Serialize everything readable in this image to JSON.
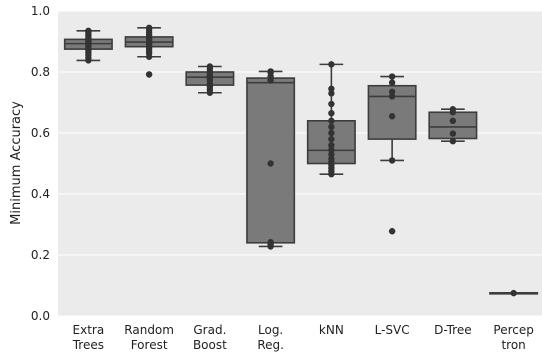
{
  "chart_data": {
    "type": "box",
    "title": "",
    "xlabel": "",
    "ylabel": "Minimum Accuracy",
    "ylim": [
      0.0,
      1.0
    ],
    "yticks": [
      "0.0",
      "0.2",
      "0.4",
      "0.6",
      "0.8",
      "1.0"
    ],
    "grid": true,
    "categories": [
      {
        "line1": "Extra",
        "line2": "Trees"
      },
      {
        "line1": "Random",
        "line2": "Forest"
      },
      {
        "line1": "Grad.",
        "line2": "Boost"
      },
      {
        "line1": "Log.",
        "line2": "Reg."
      },
      {
        "line1": "kNN",
        "line2": ""
      },
      {
        "line1": "L-SVC",
        "line2": ""
      },
      {
        "line1": "D-Tree",
        "line2": ""
      },
      {
        "line1": "Percep",
        "line2": "tron"
      }
    ],
    "boxes": [
      {
        "q1": 0.875,
        "median": 0.893,
        "q3": 0.907,
        "whislo": 0.838,
        "whishi": 0.935,
        "fliers": [],
        "points": [
          0.838,
          0.846,
          0.856,
          0.864,
          0.872,
          0.878,
          0.884,
          0.889,
          0.893,
          0.897,
          0.902,
          0.906,
          0.912,
          0.918,
          0.925,
          0.931,
          0.935
        ]
      },
      {
        "q1": 0.883,
        "median": 0.898,
        "q3": 0.915,
        "whislo": 0.85,
        "whishi": 0.945,
        "fliers": [
          0.792
        ],
        "points": [
          0.792,
          0.85,
          0.862,
          0.87,
          0.878,
          0.885,
          0.89,
          0.895,
          0.9,
          0.905,
          0.91,
          0.915,
          0.922,
          0.93,
          0.938,
          0.945
        ]
      },
      {
        "q1": 0.757,
        "median": 0.783,
        "q3": 0.8,
        "whislo": 0.732,
        "whishi": 0.818,
        "fliers": [],
        "points": [
          0.732,
          0.742,
          0.752,
          0.762,
          0.772,
          0.78,
          0.786,
          0.792,
          0.8,
          0.81,
          0.818
        ]
      },
      {
        "q1": 0.24,
        "median": 0.765,
        "q3": 0.78,
        "whislo": 0.228,
        "whishi": 0.802,
        "fliers": [],
        "points": [
          0.228,
          0.235,
          0.242,
          0.5,
          0.772,
          0.785,
          0.798,
          0.802
        ]
      },
      {
        "q1": 0.5,
        "median": 0.543,
        "q3": 0.64,
        "whislo": 0.465,
        "whishi": 0.825,
        "fliers": [],
        "points": [
          0.465,
          0.475,
          0.485,
          0.495,
          0.505,
          0.515,
          0.53,
          0.545,
          0.56,
          0.58,
          0.6,
          0.62,
          0.64,
          0.665,
          0.695,
          0.73,
          0.745,
          0.825
        ]
      },
      {
        "q1": 0.58,
        "median": 0.72,
        "q3": 0.755,
        "whislo": 0.51,
        "whishi": 0.785,
        "fliers": [
          0.278
        ],
        "points": [
          0.278,
          0.51,
          0.655,
          0.72,
          0.735,
          0.765,
          0.785
        ]
      },
      {
        "q1": 0.582,
        "median": 0.62,
        "q3": 0.668,
        "whislo": 0.573,
        "whishi": 0.678,
        "fliers": [],
        "points": [
          0.573,
          0.598,
          0.64,
          0.668,
          0.678
        ]
      },
      {
        "q1": 0.074,
        "median": 0.075,
        "q3": 0.076,
        "whislo": 0.074,
        "whishi": 0.076,
        "fliers": [],
        "points": [
          0.075
        ]
      }
    ],
    "colors": {
      "background": "#ebebeb",
      "grid": "#ffffff",
      "box_fill": "#7a7a7a",
      "line": "#3d3d3d",
      "points": "#333333"
    }
  }
}
